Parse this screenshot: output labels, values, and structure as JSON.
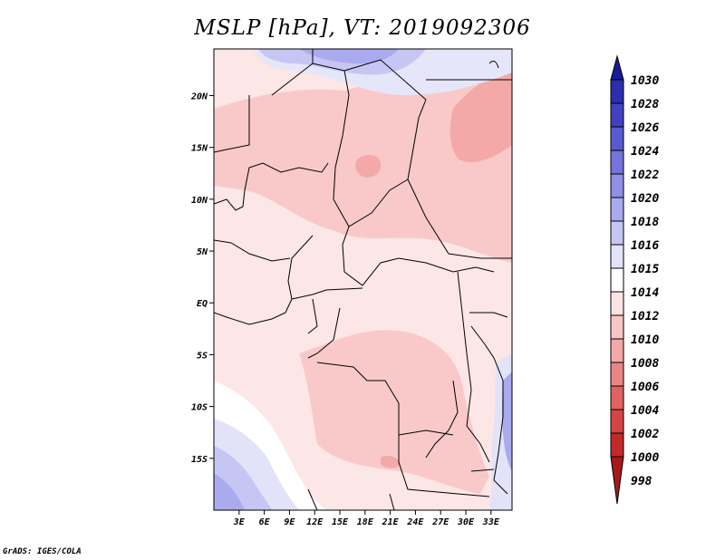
{
  "title": "MSLP [hPa], VT: 2019092306",
  "credit": "GrADS: IGES/COLA",
  "map": {
    "lon_range": [
      0,
      35.5
    ],
    "lat_range": [
      -20,
      24.5
    ],
    "lat_ticks": [
      {
        "value": 20,
        "label": "20N"
      },
      {
        "value": 15,
        "label": "15N"
      },
      {
        "value": 10,
        "label": "10N"
      },
      {
        "value": 5,
        "label": "5N"
      },
      {
        "value": 0,
        "label": "EQ"
      },
      {
        "value": -5,
        "label": "5S"
      },
      {
        "value": -10,
        "label": "10S"
      },
      {
        "value": -15,
        "label": "15S"
      }
    ],
    "lon_ticks": [
      {
        "value": 3,
        "label": "3E"
      },
      {
        "value": 6,
        "label": "6E"
      },
      {
        "value": 9,
        "label": "9E"
      },
      {
        "value": 12,
        "label": "12E"
      },
      {
        "value": 15,
        "label": "15E"
      },
      {
        "value": 18,
        "label": "18E"
      },
      {
        "value": 21,
        "label": "21E"
      },
      {
        "value": 24,
        "label": "24E"
      },
      {
        "value": 27,
        "label": "27E"
      },
      {
        "value": 30,
        "label": "30E"
      },
      {
        "value": 33,
        "label": "33E"
      }
    ]
  },
  "colorbar": {
    "labels": [
      "1030",
      "1028",
      "1026",
      "1024",
      "1022",
      "1020",
      "1018",
      "1016",
      "1015",
      "1014",
      "1012",
      "1010",
      "1008",
      "1006",
      "1004",
      "1002",
      "1000",
      "998"
    ],
    "colors": [
      "#1a1a9c",
      "#2d2db0",
      "#4242c0",
      "#5a5ad0",
      "#7474dc",
      "#8f8fe6",
      "#aaaaee",
      "#c6c6f4",
      "#e2e2f9",
      "#ffffff",
      "#fce3e3",
      "#f9c6c6",
      "#f4a8a8",
      "#ec8585",
      "#e06262",
      "#d44444",
      "#c22a2a",
      "#a81818"
    ]
  }
}
